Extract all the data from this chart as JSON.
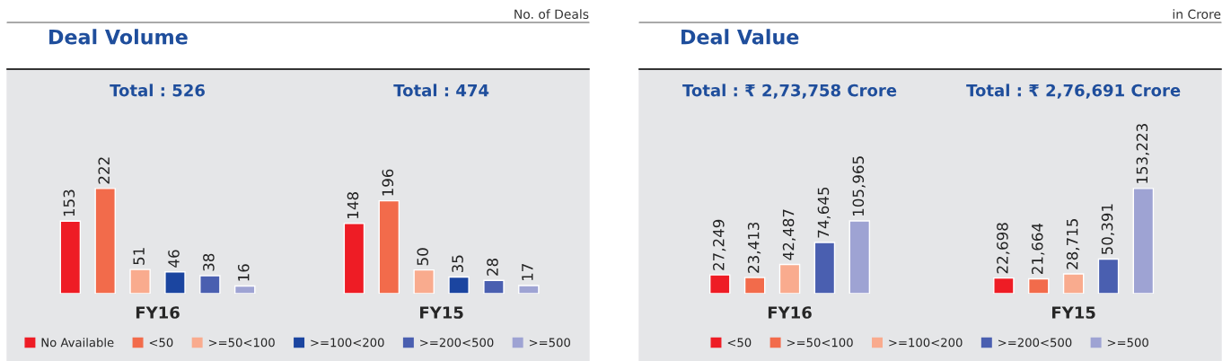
{
  "chart_data": [
    {
      "type": "bar",
      "title": "Deal Volume",
      "annotations": [
        "No. of Deals",
        "Total : 526",
        "Total : 474"
      ],
      "categories": [
        "FY16",
        "FY15"
      ],
      "tick_labels": "x",
      "data_labels": true,
      "legend": "bottom",
      "series": [
        {
          "name": "No Available",
          "color": "#ee1c25",
          "values": [
            153,
            148
          ]
        },
        {
          "name": "<50",
          "color": "#f26b4b",
          "values": [
            222,
            196
          ]
        },
        {
          "name": ">=50<100",
          "color": "#f9ab8e",
          "values": [
            51,
            50
          ]
        },
        {
          "name": ">=100<200",
          "color": "#1b45a0",
          "values": [
            46,
            35
          ]
        },
        {
          "name": ">=200<500",
          "color": "#4a5fb0",
          "values": [
            38,
            28
          ]
        },
        {
          "name": ">=500",
          "color": "#9ea3d3",
          "values": [
            16,
            17
          ]
        }
      ]
    },
    {
      "type": "bar",
      "title": "Deal Value",
      "annotations": [
        "in Crore",
        "Total : ₹ 2,73,758 Crore",
        "Total : ₹ 2,76,691 Crore"
      ],
      "categories": [
        "FY16",
        "FY15"
      ],
      "tick_labels": "x",
      "legend": "bottom",
      "series": [
        {
          "name": "<50",
          "color": "#ee1c25",
          "values": [
            27249,
            22698
          ],
          "value_labels": [
            "27,249",
            "22,698"
          ]
        },
        {
          "name": ">=50<100",
          "color": "#f26b4b",
          "values": [
            23413,
            21664
          ],
          "value_labels": [
            "23,413",
            "21,664"
          ]
        },
        {
          "name": ">=100<200",
          "color": "#f9ab8e",
          "values": [
            42487,
            28715
          ],
          "value_labels": [
            "42,487",
            "28,715"
          ]
        },
        {
          "name": ">=200<500",
          "color": "#4a5fb0",
          "values": [
            74645,
            50391
          ],
          "value_labels": [
            "74,645",
            "50,391"
          ]
        },
        {
          "name": ">=500",
          "color": "#9ea3d3",
          "values": [
            105965,
            153223
          ],
          "value_labels": [
            "105,965",
            "153,223"
          ]
        }
      ]
    }
  ]
}
